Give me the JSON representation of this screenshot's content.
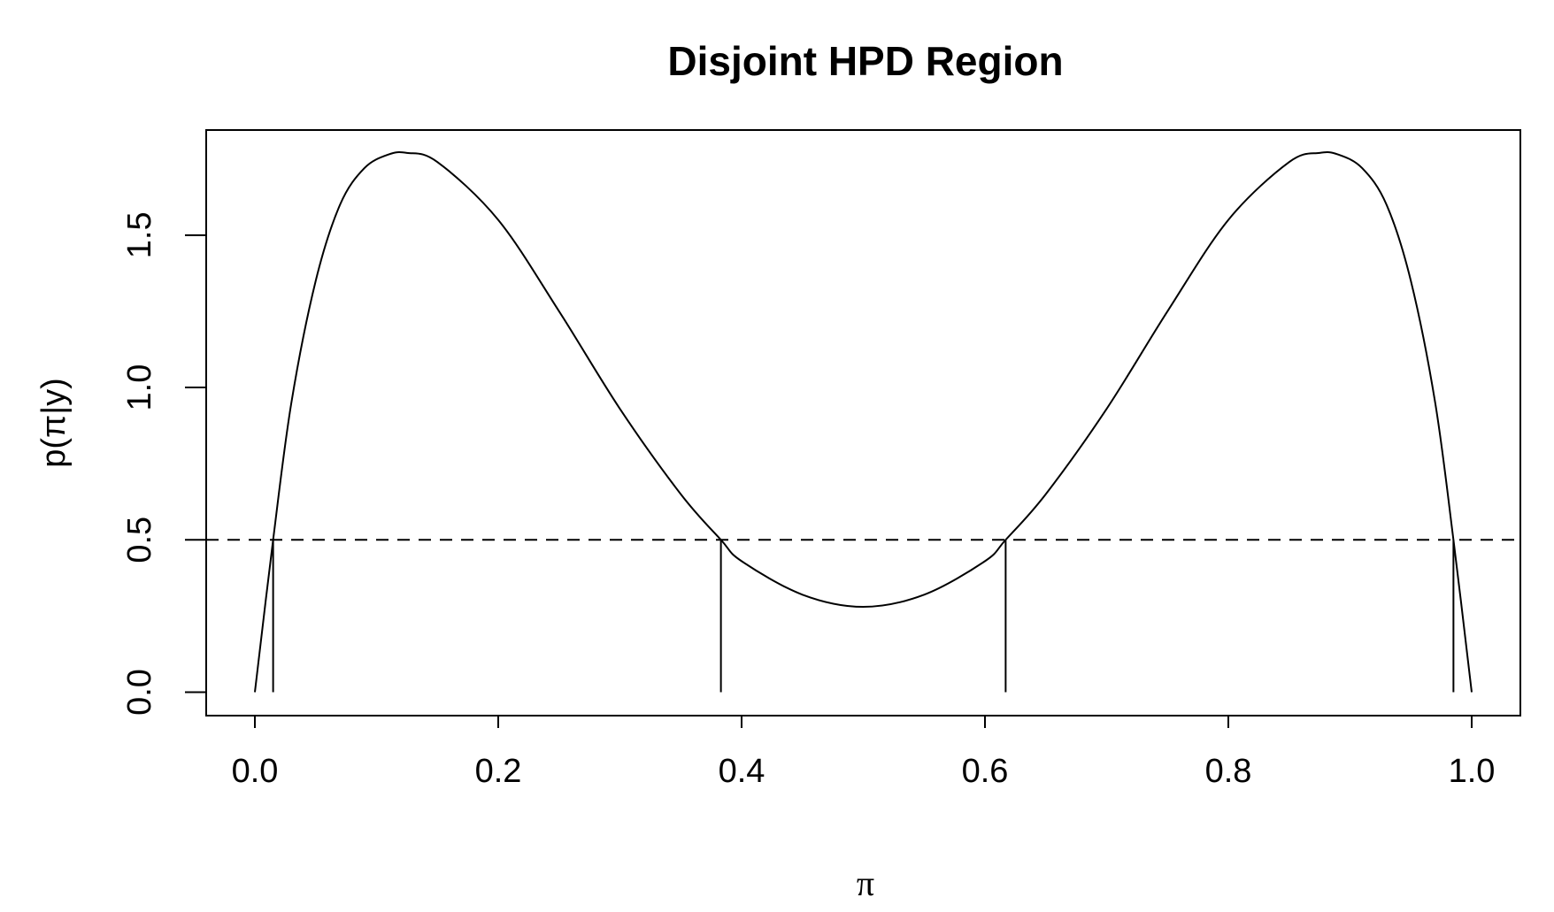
{
  "chart_data": {
    "type": "line",
    "title": "Disjoint HPD Region",
    "xlabel": "π",
    "ylabel": "p(π|y)",
    "xlim": [
      -0.04,
      1.04
    ],
    "ylim": [
      -0.077,
      1.845
    ],
    "x_ticks": [
      0.0,
      0.2,
      0.4,
      0.6,
      0.8,
      1.0
    ],
    "x_tick_labels": [
      "0.0",
      "0.2",
      "0.4",
      "0.6",
      "0.8",
      "1.0"
    ],
    "y_ticks": [
      0.0,
      0.5,
      1.0,
      1.5
    ],
    "y_tick_labels": [
      "0.0",
      "0.5",
      "1.0",
      "1.5"
    ],
    "grid": false,
    "series": [
      {
        "style": "solid",
        "color": "#000000",
        "x": [
          0.0,
          0.015,
          0.03,
          0.05,
          0.07,
          0.09,
          0.11,
          0.125,
          0.15,
          0.2,
          0.25,
          0.3,
          0.35,
          0.383,
          0.4,
          0.45,
          0.5,
          0.55,
          0.6,
          0.617,
          0.65,
          0.7,
          0.75,
          0.8,
          0.85,
          0.875,
          0.89,
          0.91,
          0.93,
          0.95,
          0.97,
          0.985,
          1.0
        ],
        "y": [
          0.0,
          0.5,
          0.95,
          1.35,
          1.6,
          1.72,
          1.765,
          1.77,
          1.74,
          1.55,
          1.25,
          0.93,
          0.65,
          0.5,
          0.43,
          0.32,
          0.28,
          0.32,
          0.43,
          0.5,
          0.65,
          0.93,
          1.25,
          1.55,
          1.74,
          1.77,
          1.765,
          1.72,
          1.6,
          1.35,
          0.95,
          0.5,
          0.0
        ]
      }
    ],
    "hline": {
      "y": 0.5,
      "style": "dashed"
    },
    "vlines": [
      {
        "x": 0.015,
        "y0": 0.0,
        "y1": 0.5
      },
      {
        "x": 0.383,
        "y0": 0.0,
        "y1": 0.5
      },
      {
        "x": 0.617,
        "y0": 0.0,
        "y1": 0.5
      },
      {
        "x": 0.985,
        "y0": 0.0,
        "y1": 0.5
      }
    ]
  }
}
